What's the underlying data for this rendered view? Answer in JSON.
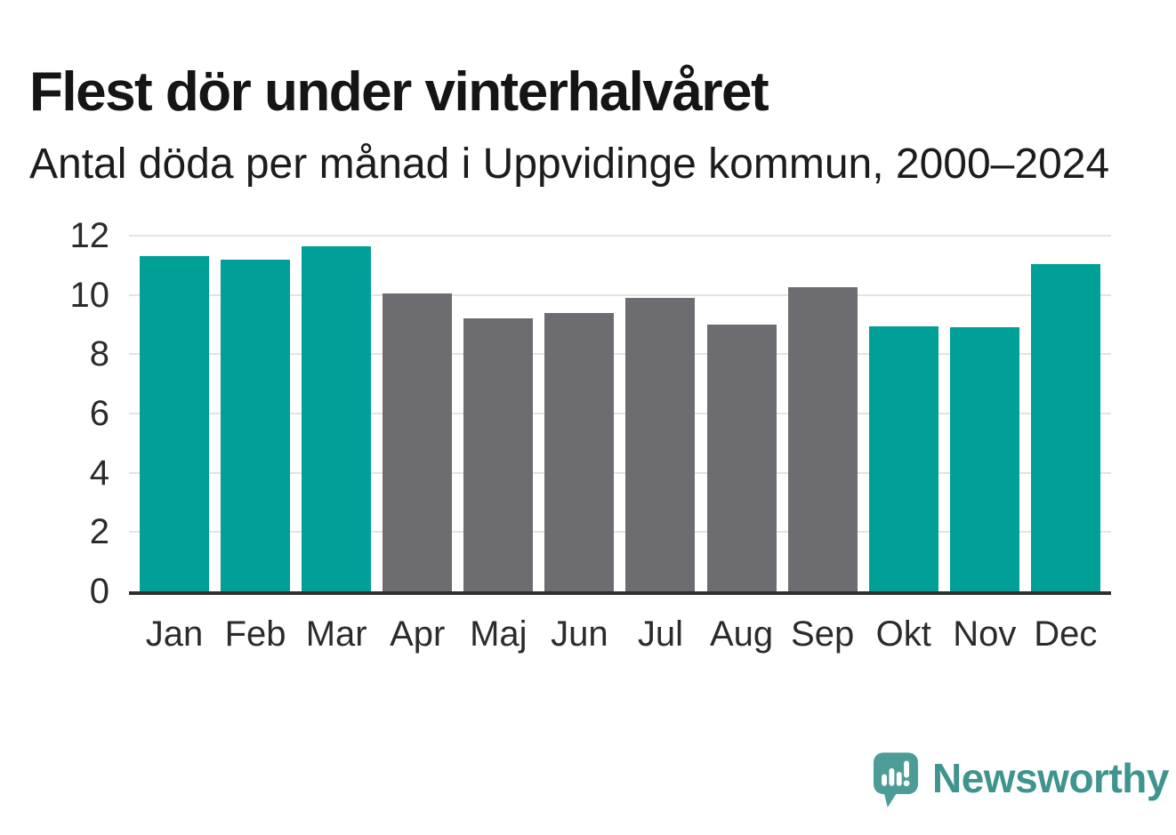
{
  "chart_data": {
    "type": "bar",
    "title": "Flest dör under vinterhalvåret",
    "subtitle": "Antal döda per månad i Uppvidinge kommun, 2000–2024",
    "categories": [
      "Jan",
      "Feb",
      "Mar",
      "Apr",
      "Maj",
      "Jun",
      "Jul",
      "Aug",
      "Sep",
      "Okt",
      "Nov",
      "Dec"
    ],
    "values": [
      11.3,
      11.2,
      11.65,
      10.05,
      9.2,
      9.4,
      9.9,
      9.0,
      10.25,
      8.95,
      8.9,
      11.05
    ],
    "bar_colors": [
      "#00a099",
      "#00a099",
      "#00a099",
      "#6d6d71",
      "#6d6d71",
      "#6d6d71",
      "#6d6d71",
      "#6d6d71",
      "#6d6d71",
      "#00a099",
      "#00a099",
      "#00a099"
    ],
    "winter_color": "#00a099",
    "summer_color": "#6d6d71",
    "xlabel": "",
    "ylabel": "",
    "ylim": [
      0,
      12
    ],
    "yticks": [
      0,
      2,
      4,
      6,
      8,
      10,
      12
    ],
    "grid": true,
    "legend": "none",
    "axis_color": "#2e2e2e",
    "gridline_color": "#e3e3e3",
    "tick_label_color": "#2b2b2b"
  },
  "branding": {
    "logo_text": "Newsworthy",
    "logo_text_color": "#3f948e",
    "logo_icon_color": "#4c9d97",
    "logo_icon": "newsworthy-speech-bubble-chart-icon"
  }
}
